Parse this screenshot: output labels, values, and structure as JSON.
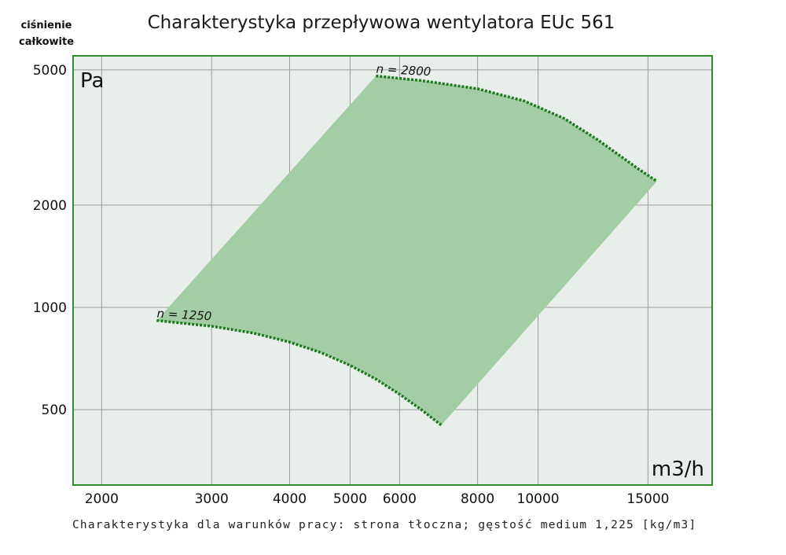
{
  "title": "Charakterystyka przepływowa wentylatora EUc 561",
  "ylabel_lines": [
    "ciśnienie",
    "całkowite"
  ],
  "footnote": "Charakterystyka dla warunków pracy: strona tłoczna; gęstość medium 1,225 [kg/m3]",
  "colors": {
    "plot_bg": "#e8efea",
    "frame": "#2e8b2e",
    "region_fill": "#a3cda5",
    "curve": "#1e7a1e",
    "grid": "#9a9a9a"
  },
  "chart_data": {
    "type": "area",
    "title": "Charakterystyka przepływowa wentylatora EUc 561",
    "xlabel": "m3/h",
    "ylabel": "Pa",
    "x_scale": "log",
    "y_scale": "log",
    "xlim": [
      1800,
      19000
    ],
    "ylim": [
      300,
      5500
    ],
    "grid": true,
    "x_ticks": [
      2000,
      3000,
      4000,
      5000,
      6000,
      8000,
      10000,
      15000
    ],
    "y_ticks": [
      500,
      1000,
      2000,
      5000
    ],
    "series": [
      {
        "name": "n = 2800",
        "x": [
          5500,
          6500,
          8000,
          9500,
          11000,
          12500,
          13500,
          14500,
          15500
        ],
        "y": [
          4800,
          4650,
          4400,
          4050,
          3600,
          3100,
          2800,
          2550,
          2350
        ]
      },
      {
        "name": "n = 1250",
        "x": [
          2450,
          3000,
          3500,
          4000,
          4500,
          5000,
          5500,
          6000,
          6500,
          7000
        ],
        "y": [
          915,
          880,
          840,
          790,
          735,
          675,
          615,
          555,
          500,
          450
        ]
      }
    ],
    "region_edges": [
      {
        "x": [
          2450,
          5500
        ],
        "y": [
          915,
          4800
        ]
      },
      {
        "x": [
          7000,
          15500
        ],
        "y": [
          450,
          2350
        ]
      }
    ],
    "annotations": [
      "n = 2800",
      "n = 1250"
    ]
  }
}
